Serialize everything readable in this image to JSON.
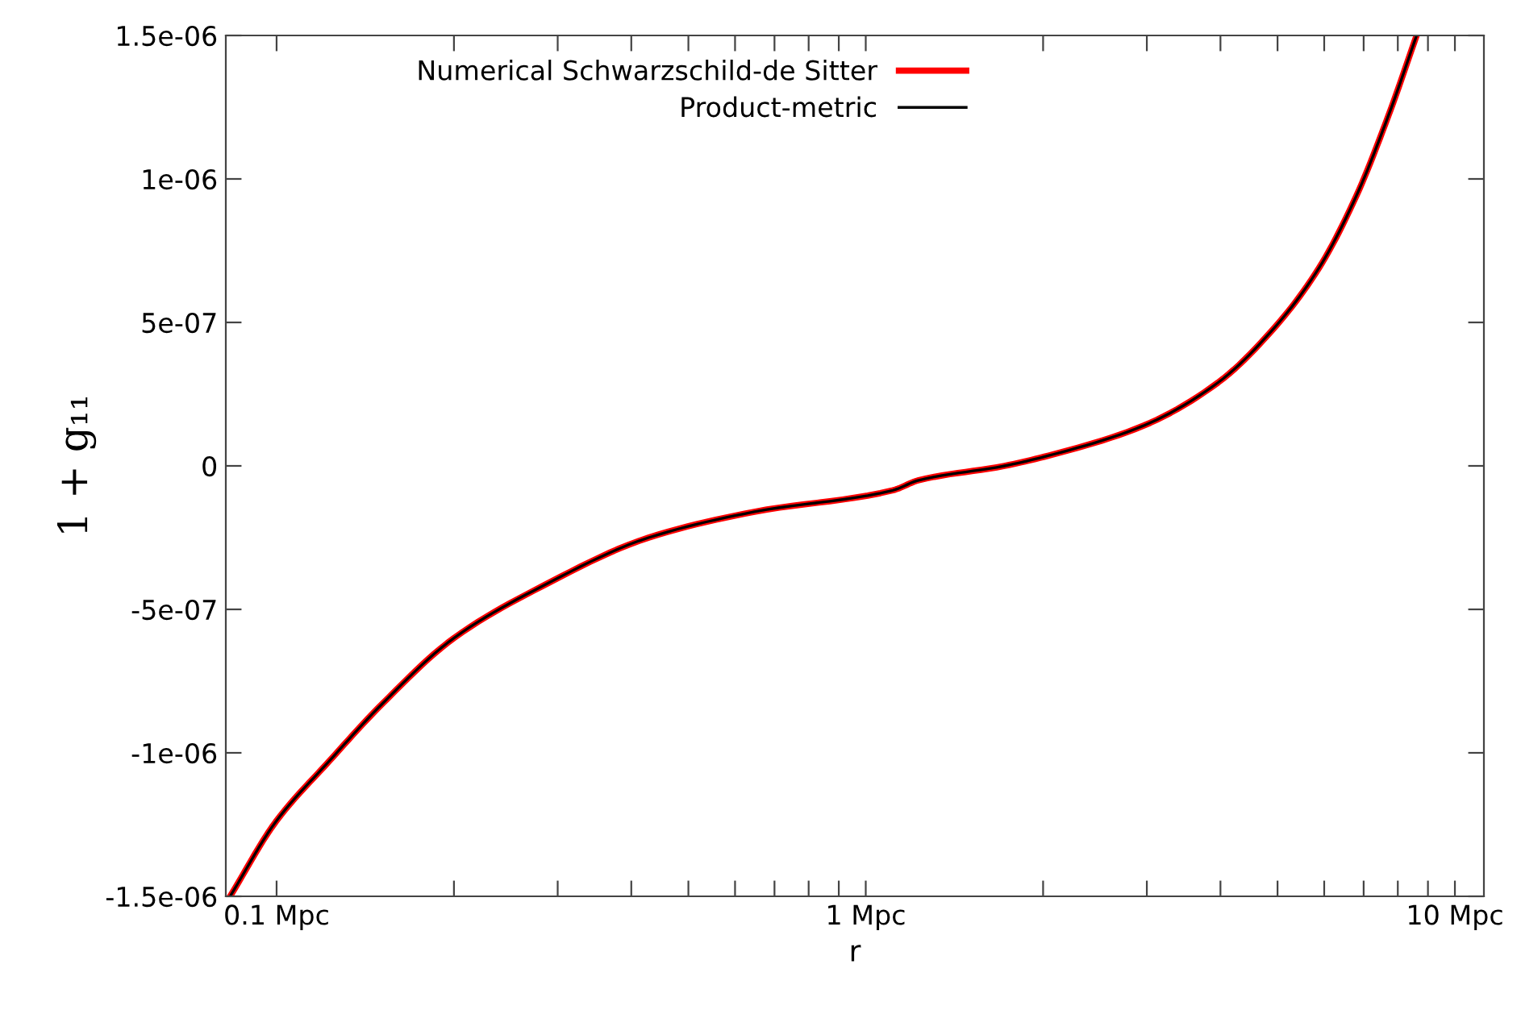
{
  "chart_data": {
    "type": "line",
    "xlabel": "r",
    "ylabel": "1 + g₁₁",
    "log": "x",
    "grid": false,
    "legend": "top",
    "marker": "none",
    "line_style": "solid",
    "x": [
      0.0834,
      0.0997,
      0.1227,
      0.151,
      0.2,
      0.282,
      0.428,
      0.647,
      1.112,
      1.23,
      1.72,
      2.08,
      2.96,
      3.96,
      4.98,
      5.88,
      6.8,
      7.71,
      8.61
    ],
    "series": [
      {
        "name": "Numerical Schwarzschild-de Sitter",
        "color": "#ff0000",
        "values": [
          -1.5e-06,
          -1.24e-06,
          -1.03e-06,
          -8.3e-07,
          -6e-07,
          -4.2e-07,
          -2.5e-07,
          -1.6e-07,
          -8.5e-08,
          -5e-08,
          0,
          4e-08,
          1.4e-07,
          2.9e-07,
          4.9e-07,
          6.9e-07,
          9.4e-07,
          1.22e-06,
          1.5e-06
        ]
      },
      {
        "name": "Product-metric",
        "color": "#000000",
        "values": [
          -1.5e-06,
          -1.24e-06,
          -1.03e-06,
          -8.3e-07,
          -6e-07,
          -4.2e-07,
          -2.5e-07,
          -1.6e-07,
          -8.5e-08,
          -5e-08,
          0,
          4e-08,
          1.4e-07,
          2.9e-07,
          4.9e-07,
          6.9e-07,
          9.4e-07,
          1.22e-06,
          1.5e-06
        ]
      }
    ],
    "xlim": [
      0.082,
      11.2
    ],
    "ylim": [
      -1.5e-06,
      1.5e-06
    ],
    "xticks": [
      {
        "value": 0.1,
        "label": "0.1 Mpc"
      },
      {
        "value": 0.2,
        "label": null
      },
      {
        "value": 0.3,
        "label": null
      },
      {
        "value": 0.4,
        "label": null
      },
      {
        "value": 0.5,
        "label": null
      },
      {
        "value": 0.6,
        "label": null
      },
      {
        "value": 0.7,
        "label": null
      },
      {
        "value": 0.8,
        "label": null
      },
      {
        "value": 0.9,
        "label": null
      },
      {
        "value": 1,
        "label": "1 Mpc"
      },
      {
        "value": 2,
        "label": null
      },
      {
        "value": 3,
        "label": null
      },
      {
        "value": 4,
        "label": null
      },
      {
        "value": 5,
        "label": null
      },
      {
        "value": 6,
        "label": null
      },
      {
        "value": 7,
        "label": null
      },
      {
        "value": 8,
        "label": null
      },
      {
        "value": 9,
        "label": null
      },
      {
        "value": 10,
        "label": "10 Mpc"
      }
    ],
    "yticks": [
      {
        "value": -1.5e-06,
        "label": "-1.5e-06"
      },
      {
        "value": -1e-06,
        "label": "-1e-06"
      },
      {
        "value": -5e-07,
        "label": "-5e-07"
      },
      {
        "value": 0,
        "label": "0"
      },
      {
        "value": 5e-07,
        "label": "5e-07"
      },
      {
        "value": 1e-06,
        "label": "1e-06"
      },
      {
        "value": 1.5e-06,
        "label": "1.5e-06"
      }
    ]
  }
}
